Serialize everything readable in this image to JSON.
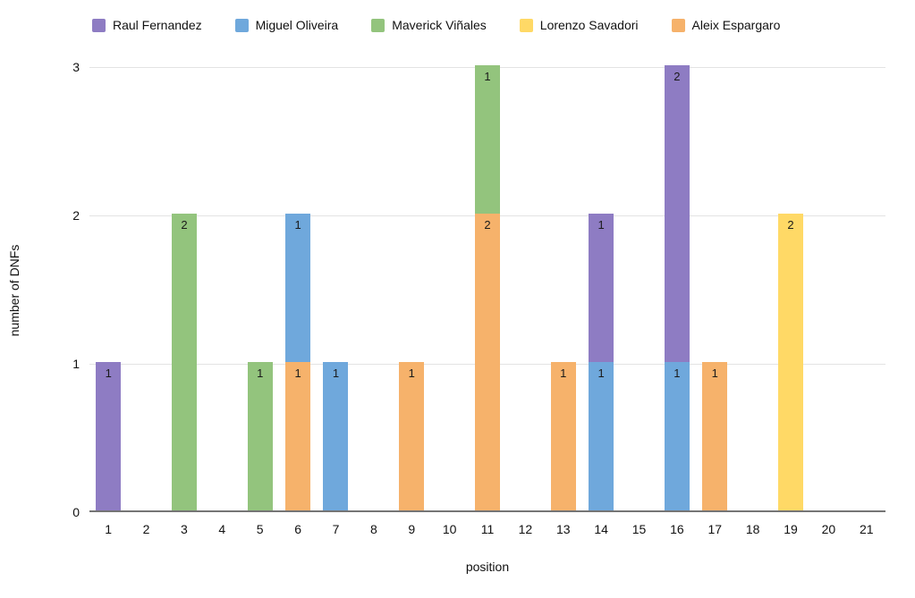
{
  "chart_data": {
    "type": "bar",
    "stacked": true,
    "title": "",
    "xlabel": "position",
    "ylabel": "number of DNFs",
    "categories": [
      "1",
      "2",
      "3",
      "4",
      "5",
      "6",
      "7",
      "8",
      "9",
      "10",
      "11",
      "12",
      "13",
      "14",
      "15",
      "16",
      "17",
      "18",
      "19",
      "20",
      "21"
    ],
    "series": [
      {
        "name": "Raul Fernandez",
        "color": "#8e7cc3",
        "values": [
          1,
          0,
          0,
          0,
          0,
          0,
          0,
          0,
          0,
          0,
          0,
          0,
          0,
          1,
          0,
          2,
          0,
          0,
          0,
          0,
          0
        ]
      },
      {
        "name": "Miguel Oliveira",
        "color": "#6fa8dc",
        "values": [
          0,
          0,
          0,
          0,
          0,
          1,
          1,
          0,
          0,
          0,
          0,
          0,
          0,
          1,
          0,
          1,
          0,
          0,
          0,
          0,
          0
        ]
      },
      {
        "name": "Maverick Viñales",
        "color": "#93c47d",
        "values": [
          0,
          0,
          2,
          0,
          1,
          0,
          0,
          0,
          0,
          0,
          1,
          0,
          0,
          0,
          0,
          0,
          0,
          0,
          0,
          0,
          0
        ]
      },
      {
        "name": "Lorenzo Savadori",
        "color": "#ffd966",
        "values": [
          0,
          0,
          0,
          0,
          0,
          0,
          0,
          0,
          0,
          0,
          0,
          0,
          0,
          0,
          0,
          0,
          0,
          0,
          2,
          0,
          0
        ]
      },
      {
        "name": "Aleix Espargaro",
        "color": "#f6b26b",
        "values": [
          0,
          0,
          0,
          0,
          0,
          1,
          0,
          0,
          1,
          0,
          2,
          0,
          1,
          0,
          0,
          0,
          1,
          0,
          0,
          0,
          0
        ]
      }
    ],
    "stack_order_bottom_to_top": [
      4,
      3,
      2,
      1,
      0
    ],
    "bar_value_labels": true,
    "ylim": [
      0,
      3
    ],
    "yticks": [
      "0",
      "1",
      "2",
      "3"
    ],
    "legend_position": "top",
    "grid": true
  },
  "styles": {
    "background": "#ffffff",
    "grid_color": "#e3e3e3",
    "baseline_color": "#757575",
    "tick_text_color": "#111111",
    "value_label_color": "#1a1a1a"
  }
}
